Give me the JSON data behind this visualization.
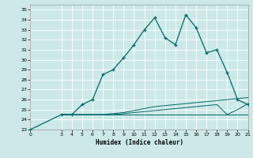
{
  "xlabel": "Humidex (Indice chaleur)",
  "bg_color": "#cce8e8",
  "grid_color": "#ffffff",
  "line_color": "#006868",
  "xlim": [
    0,
    21
  ],
  "ylim": [
    23,
    35.5
  ],
  "xticks": [
    0,
    3,
    4,
    5,
    6,
    7,
    8,
    9,
    10,
    11,
    12,
    13,
    14,
    15,
    16,
    17,
    18,
    19,
    20,
    21
  ],
  "yticks": [
    23,
    24,
    25,
    26,
    27,
    28,
    29,
    30,
    31,
    32,
    33,
    34,
    35
  ],
  "main_x": [
    0,
    3,
    4,
    5,
    6,
    7,
    8,
    9,
    10,
    11,
    12,
    13,
    14,
    15,
    16,
    17,
    18,
    19,
    20,
    21
  ],
  "main_y": [
    23,
    24.5,
    24.5,
    25.5,
    26.0,
    28.5,
    29.0,
    30.2,
    31.5,
    33.0,
    34.2,
    32.2,
    31.5,
    34.5,
    33.2,
    30.7,
    31.0,
    28.7,
    26.0,
    25.5
  ],
  "line2_x": [
    3,
    4,
    5,
    6,
    7,
    8,
    9,
    10,
    11,
    12,
    13,
    14,
    15,
    16,
    17,
    18,
    19,
    20,
    21
  ],
  "line2_y": [
    24.5,
    24.5,
    24.5,
    24.5,
    24.5,
    24.6,
    24.7,
    24.9,
    25.1,
    25.3,
    25.4,
    25.5,
    25.6,
    25.7,
    25.8,
    25.9,
    26.0,
    26.1,
    26.2
  ],
  "line3_x": [
    3,
    4,
    5,
    6,
    7,
    8,
    9,
    10,
    11,
    12,
    13,
    14,
    15,
    16,
    17,
    18,
    19,
    20,
    21
  ],
  "line3_y": [
    24.5,
    24.5,
    24.5,
    24.5,
    24.5,
    24.5,
    24.6,
    24.7,
    24.8,
    24.9,
    25.0,
    25.1,
    25.2,
    25.3,
    25.4,
    25.5,
    24.5,
    25.0,
    25.6
  ],
  "line4_x": [
    3,
    20,
    21
  ],
  "line4_y": [
    24.5,
    24.5,
    24.5
  ],
  "marker": "+"
}
